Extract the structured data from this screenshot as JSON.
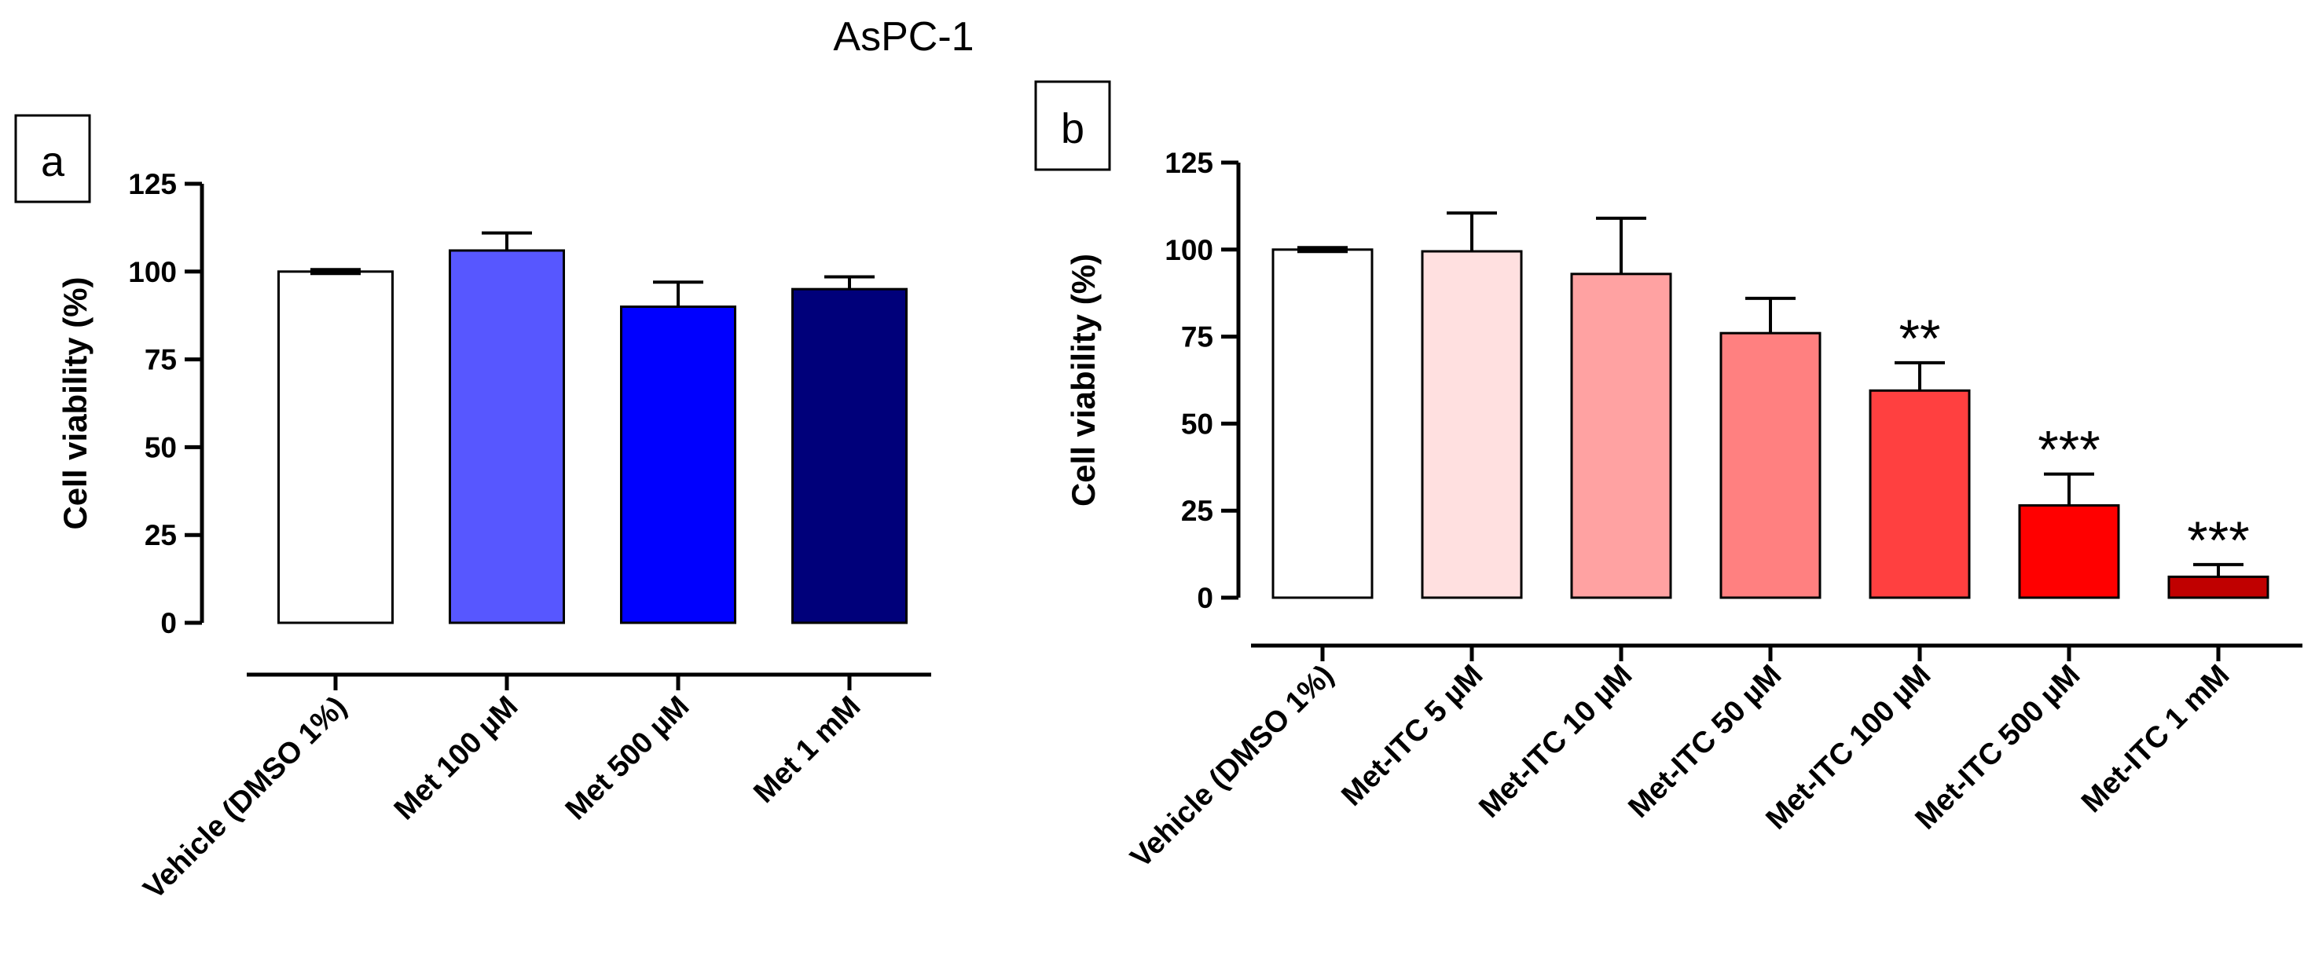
{
  "figure_title": "AsPC-1",
  "chart_data": [
    {
      "type": "bar",
      "panel": "a",
      "title": "",
      "xlabel": "",
      "ylabel": "Cell viability (%)",
      "ylim": [
        0,
        125
      ],
      "yticks": [
        0,
        25,
        50,
        75,
        100,
        125
      ],
      "categories": [
        "Vehicle (DMSO 1%)",
        "Met 100 µM",
        "Met 500 µM",
        "Met 1 mM"
      ],
      "values": [
        100,
        106,
        90,
        95
      ],
      "errors": [
        0.5,
        5,
        7,
        3.5
      ],
      "significance": [
        "",
        "",
        "",
        ""
      ],
      "colors": [
        "#ffffff",
        "#5757ff",
        "#0000ff",
        "#00007a"
      ],
      "grid": false,
      "legend": "none"
    },
    {
      "type": "bar",
      "panel": "b",
      "title": "",
      "xlabel": "",
      "ylabel": "Cell viability (%)",
      "ylim": [
        0,
        125
      ],
      "yticks": [
        0,
        25,
        50,
        75,
        100,
        125
      ],
      "categories": [
        "Vehicle (DMSO 1%)",
        "Met-ITC 5 µM",
        "Met-ITC 10 µM",
        "Met-ITC 50 µM",
        "Met-ITC 100 µM",
        "Met-ITC 500 µM",
        "Met-ITC 1 mM"
      ],
      "values": [
        100,
        99.5,
        93,
        76,
        59.5,
        26.5,
        6
      ],
      "errors": [
        0.5,
        11,
        16,
        10,
        8,
        9,
        3.5
      ],
      "significance": [
        "",
        "",
        "",
        "",
        "**",
        "***",
        "***"
      ],
      "colors": [
        "#ffffff",
        "#ffe0e0",
        "#ffa2a2",
        "#ff8080",
        "#ff4040",
        "#ff0000",
        "#c00000"
      ],
      "grid": false,
      "legend": "none"
    }
  ]
}
